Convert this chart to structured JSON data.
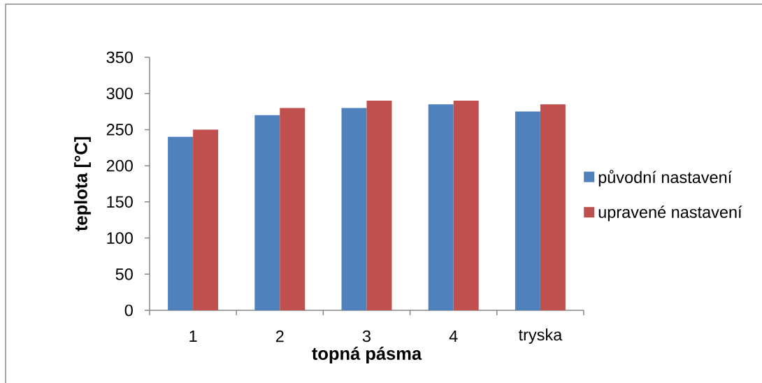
{
  "chart_data": {
    "type": "bar",
    "xlabel": "topná pásma",
    "ylabel": "teplota [°C]",
    "categories": [
      "1",
      "2",
      "3",
      "4",
      "tryska"
    ],
    "series": [
      {
        "name": "původní nastavení",
        "color": "#4f81bd",
        "values": [
          240,
          270,
          280,
          285,
          275
        ]
      },
      {
        "name": "upravené nastavení",
        "color": "#c0504d",
        "values": [
          250,
          280,
          290,
          290,
          285
        ]
      }
    ],
    "ylim": [
      0,
      350
    ],
    "yticks": [
      0,
      50,
      100,
      150,
      200,
      250,
      300,
      350
    ],
    "legend": "right"
  }
}
